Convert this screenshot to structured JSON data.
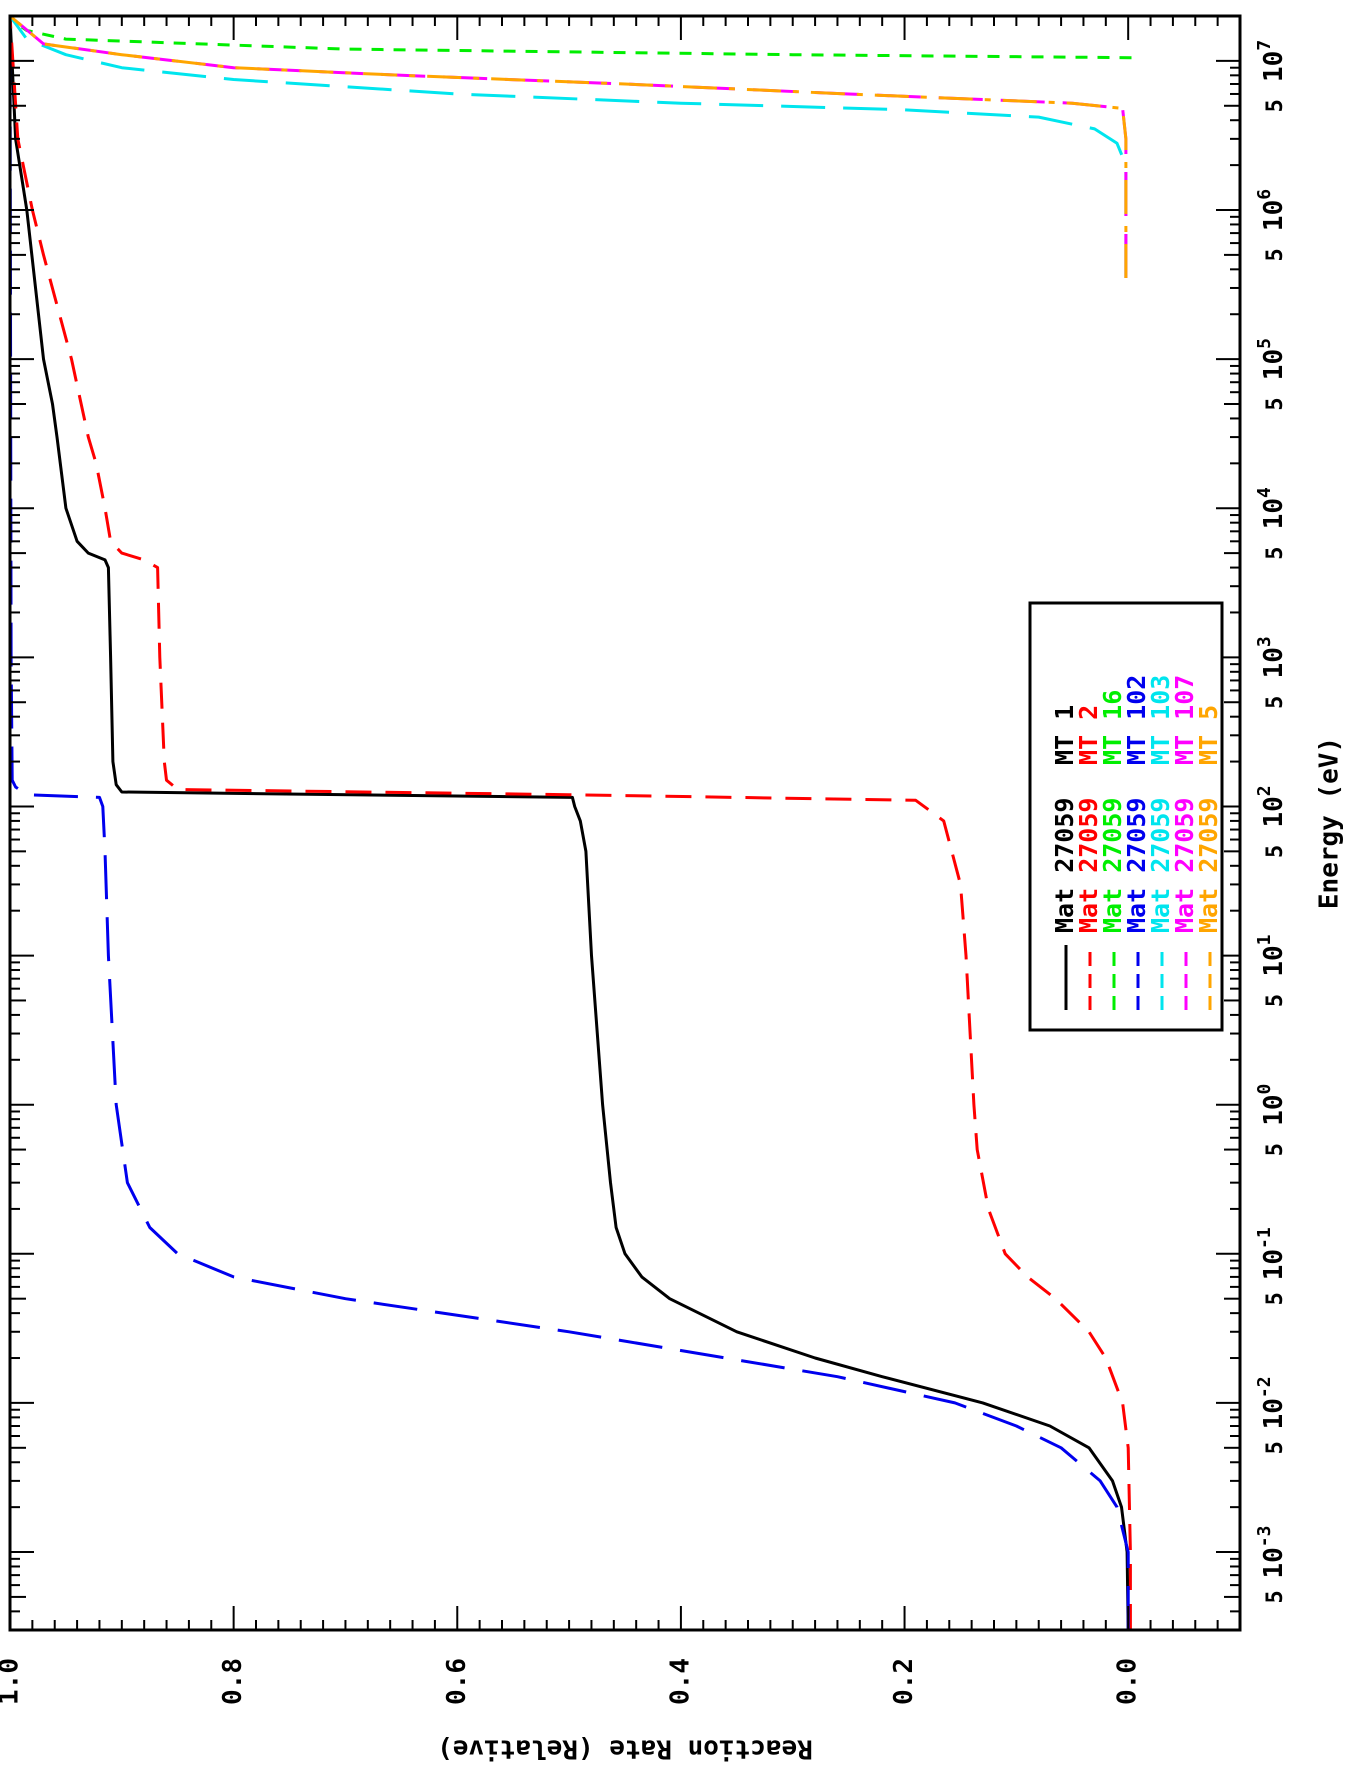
{
  "chart_data": {
    "type": "line",
    "orientation": "rotated-90-clockwise",
    "xlabel": "Energy (eV)",
    "ylabel": "Reaction Rate (Relative)",
    "xscale": "log",
    "xlim": [
      0.0003,
      20000000
    ],
    "ylim": [
      -0.1,
      1.0
    ],
    "x_major_ticks": [
      {
        "base": "10",
        "exp": "-3",
        "value": 0.001
      },
      {
        "base": "10",
        "exp": "-2",
        "value": 0.01
      },
      {
        "base": "10",
        "exp": "-1",
        "value": 0.1
      },
      {
        "base": "10",
        "exp": "0",
        "value": 1
      },
      {
        "base": "10",
        "exp": "1",
        "value": 10
      },
      {
        "base": "10",
        "exp": "2",
        "value": 100
      },
      {
        "base": "10",
        "exp": "3",
        "value": 1000
      },
      {
        "base": "10",
        "exp": "4",
        "value": 10000
      },
      {
        "base": "10",
        "exp": "5",
        "value": 100000
      },
      {
        "base": "10",
        "exp": "6",
        "value": 1000000
      },
      {
        "base": "10",
        "exp": "7",
        "value": 10000000
      }
    ],
    "x_five_ticks": [
      {
        "label": "5",
        "value": 0.0005
      },
      {
        "label": "5",
        "value": 0.005
      },
      {
        "label": "5",
        "value": 0.05
      },
      {
        "label": "5",
        "value": 0.5
      },
      {
        "label": "5",
        "value": 5
      },
      {
        "label": "5",
        "value": 50
      },
      {
        "label": "5",
        "value": 500
      },
      {
        "label": "5",
        "value": 5000
      },
      {
        "label": "5",
        "value": 50000
      },
      {
        "label": "5",
        "value": 500000
      },
      {
        "label": "5",
        "value": 5000000
      }
    ],
    "y_ticks": [
      {
        "label": "0.0",
        "value": 0.0
      },
      {
        "label": "0.2",
        "value": 0.2
      },
      {
        "label": "0.4",
        "value": 0.4
      },
      {
        "label": "0.6",
        "value": 0.6
      },
      {
        "label": "0.8",
        "value": 0.8
      },
      {
        "label": "1.0",
        "value": 1.0
      }
    ],
    "legend_position": "right-center",
    "series": [
      {
        "mat": "Mat 27059",
        "mt": "MT 1",
        "color": "#000000",
        "dash": "solid",
        "points": [
          [
            0.0003,
            0.0
          ],
          [
            0.001,
            0.001
          ],
          [
            0.002,
            0.006
          ],
          [
            0.003,
            0.014
          ],
          [
            0.005,
            0.035
          ],
          [
            0.007,
            0.07
          ],
          [
            0.01,
            0.13
          ],
          [
            0.015,
            0.22
          ],
          [
            0.02,
            0.28
          ],
          [
            0.03,
            0.35
          ],
          [
            0.05,
            0.41
          ],
          [
            0.07,
            0.435
          ],
          [
            0.1,
            0.45
          ],
          [
            0.15,
            0.458
          ],
          [
            0.3,
            0.463
          ],
          [
            1,
            0.47
          ],
          [
            10,
            0.48
          ],
          [
            50,
            0.485
          ],
          [
            80,
            0.49
          ],
          [
            100,
            0.495
          ],
          [
            115,
            0.497
          ],
          [
            125,
            0.9
          ],
          [
            140,
            0.905
          ],
          [
            200,
            0.908
          ],
          [
            1000,
            0.91
          ],
          [
            4000,
            0.912
          ],
          [
            4500,
            0.915
          ],
          [
            5000,
            0.93
          ],
          [
            6000,
            0.94
          ],
          [
            10000,
            0.95
          ],
          [
            30000,
            0.958
          ],
          [
            50000,
            0.962
          ],
          [
            100000,
            0.97
          ],
          [
            1000000,
            0.985
          ],
          [
            3000000,
            0.995
          ],
          [
            20000000,
            1.0
          ]
        ]
      },
      {
        "mat": "Mat 27059",
        "mt": "MT 2",
        "color": "#ff0000",
        "dash": "dashed",
        "points": [
          [
            0.0003,
            -0.002
          ],
          [
            0.001,
            -0.002
          ],
          [
            0.005,
            0.0
          ],
          [
            0.01,
            0.005
          ],
          [
            0.02,
            0.02
          ],
          [
            0.03,
            0.035
          ],
          [
            0.05,
            0.065
          ],
          [
            0.07,
            0.09
          ],
          [
            0.1,
            0.11
          ],
          [
            0.2,
            0.125
          ],
          [
            0.5,
            0.135
          ],
          [
            1,
            0.138
          ],
          [
            10,
            0.145
          ],
          [
            30,
            0.15
          ],
          [
            80,
            0.165
          ],
          [
            110,
            0.19
          ],
          [
            120,
            0.5
          ],
          [
            130,
            0.85
          ],
          [
            150,
            0.86
          ],
          [
            200,
            0.862
          ],
          [
            1000,
            0.866
          ],
          [
            4000,
            0.868
          ],
          [
            4500,
            0.88
          ],
          [
            5000,
            0.9
          ],
          [
            6000,
            0.91
          ],
          [
            10000,
            0.915
          ],
          [
            20000,
            0.923
          ],
          [
            30000,
            0.93
          ],
          [
            100000,
            0.945
          ],
          [
            500000,
            0.97
          ],
          [
            1000000,
            0.98
          ],
          [
            3000000,
            0.993
          ],
          [
            20000000,
            1.0
          ]
        ]
      },
      {
        "mat": "Mat 27059",
        "mt": "MT 16",
        "color": "#00ee00",
        "dash": "short-dash",
        "points": [
          [
            10500000,
            -0.003
          ],
          [
            11000000,
            0.3
          ],
          [
            12000000,
            0.7
          ],
          [
            14000000,
            0.95
          ],
          [
            16000000,
            0.985
          ],
          [
            18000000,
            0.995
          ],
          [
            20000000,
            1.0
          ]
        ]
      },
      {
        "mat": "Mat 27059",
        "mt": "MT 102",
        "color": "#0000ee",
        "dash": "long-dash",
        "points": [
          [
            0.0003,
            0.0
          ],
          [
            0.001,
            0.0
          ],
          [
            0.002,
            0.01
          ],
          [
            0.003,
            0.025
          ],
          [
            0.005,
            0.06
          ],
          [
            0.007,
            0.1
          ],
          [
            0.01,
            0.155
          ],
          [
            0.015,
            0.26
          ],
          [
            0.02,
            0.36
          ],
          [
            0.03,
            0.5
          ],
          [
            0.05,
            0.7
          ],
          [
            0.07,
            0.8
          ],
          [
            0.1,
            0.85
          ],
          [
            0.15,
            0.875
          ],
          [
            0.3,
            0.895
          ],
          [
            1,
            0.905
          ],
          [
            10,
            0.912
          ],
          [
            50,
            0.915
          ],
          [
            100,
            0.917
          ],
          [
            115,
            0.92
          ],
          [
            120,
            0.985
          ],
          [
            135,
            0.995
          ],
          [
            150,
            0.998
          ],
          [
            1000,
            0.999
          ],
          [
            20000000,
            1.0
          ]
        ]
      },
      {
        "mat": "Mat 27059",
        "mt": "MT 103",
        "color": "#00e5ee",
        "dash": "long-dash",
        "points": [
          [
            350000,
            0.002
          ],
          [
            1000000,
            0.002
          ],
          [
            2000000,
            0.002
          ],
          [
            2800000,
            0.01
          ],
          [
            3500000,
            0.03
          ],
          [
            4200000,
            0.08
          ],
          [
            4700000,
            0.2
          ],
          [
            5200000,
            0.4
          ],
          [
            6000000,
            0.6
          ],
          [
            7500000,
            0.8
          ],
          [
            9000000,
            0.9
          ],
          [
            11000000,
            0.95
          ],
          [
            14000000,
            0.985
          ],
          [
            20000000,
            1.0
          ]
        ]
      },
      {
        "mat": "Mat 27059",
        "mt": "MT 107",
        "color": "#ff00ff",
        "dash": "long-dash",
        "points": [
          [
            350000,
            0.002
          ],
          [
            1000000,
            0.002
          ],
          [
            3000000,
            0.002
          ],
          [
            4800000,
            0.005
          ],
          [
            5200000,
            0.05
          ],
          [
            6000000,
            0.25
          ],
          [
            7000000,
            0.45
          ],
          [
            8000000,
            0.65
          ],
          [
            9000000,
            0.8
          ],
          [
            11000000,
            0.9
          ],
          [
            13000000,
            0.97
          ],
          [
            20000000,
            1.0
          ]
        ]
      },
      {
        "mat": "Mat 27059",
        "mt": "MT 5",
        "color": "#ffa500",
        "dash": "dash-dot",
        "points": [
          [
            350000,
            0.002
          ],
          [
            1000000,
            0.002
          ],
          [
            3000000,
            0.002
          ],
          [
            4800000,
            0.005
          ],
          [
            5200000,
            0.05
          ],
          [
            6000000,
            0.25
          ],
          [
            7000000,
            0.45
          ],
          [
            8000000,
            0.65
          ],
          [
            9000000,
            0.8
          ],
          [
            11000000,
            0.9
          ],
          [
            13000000,
            0.97
          ],
          [
            20000000,
            1.0
          ]
        ]
      }
    ]
  }
}
